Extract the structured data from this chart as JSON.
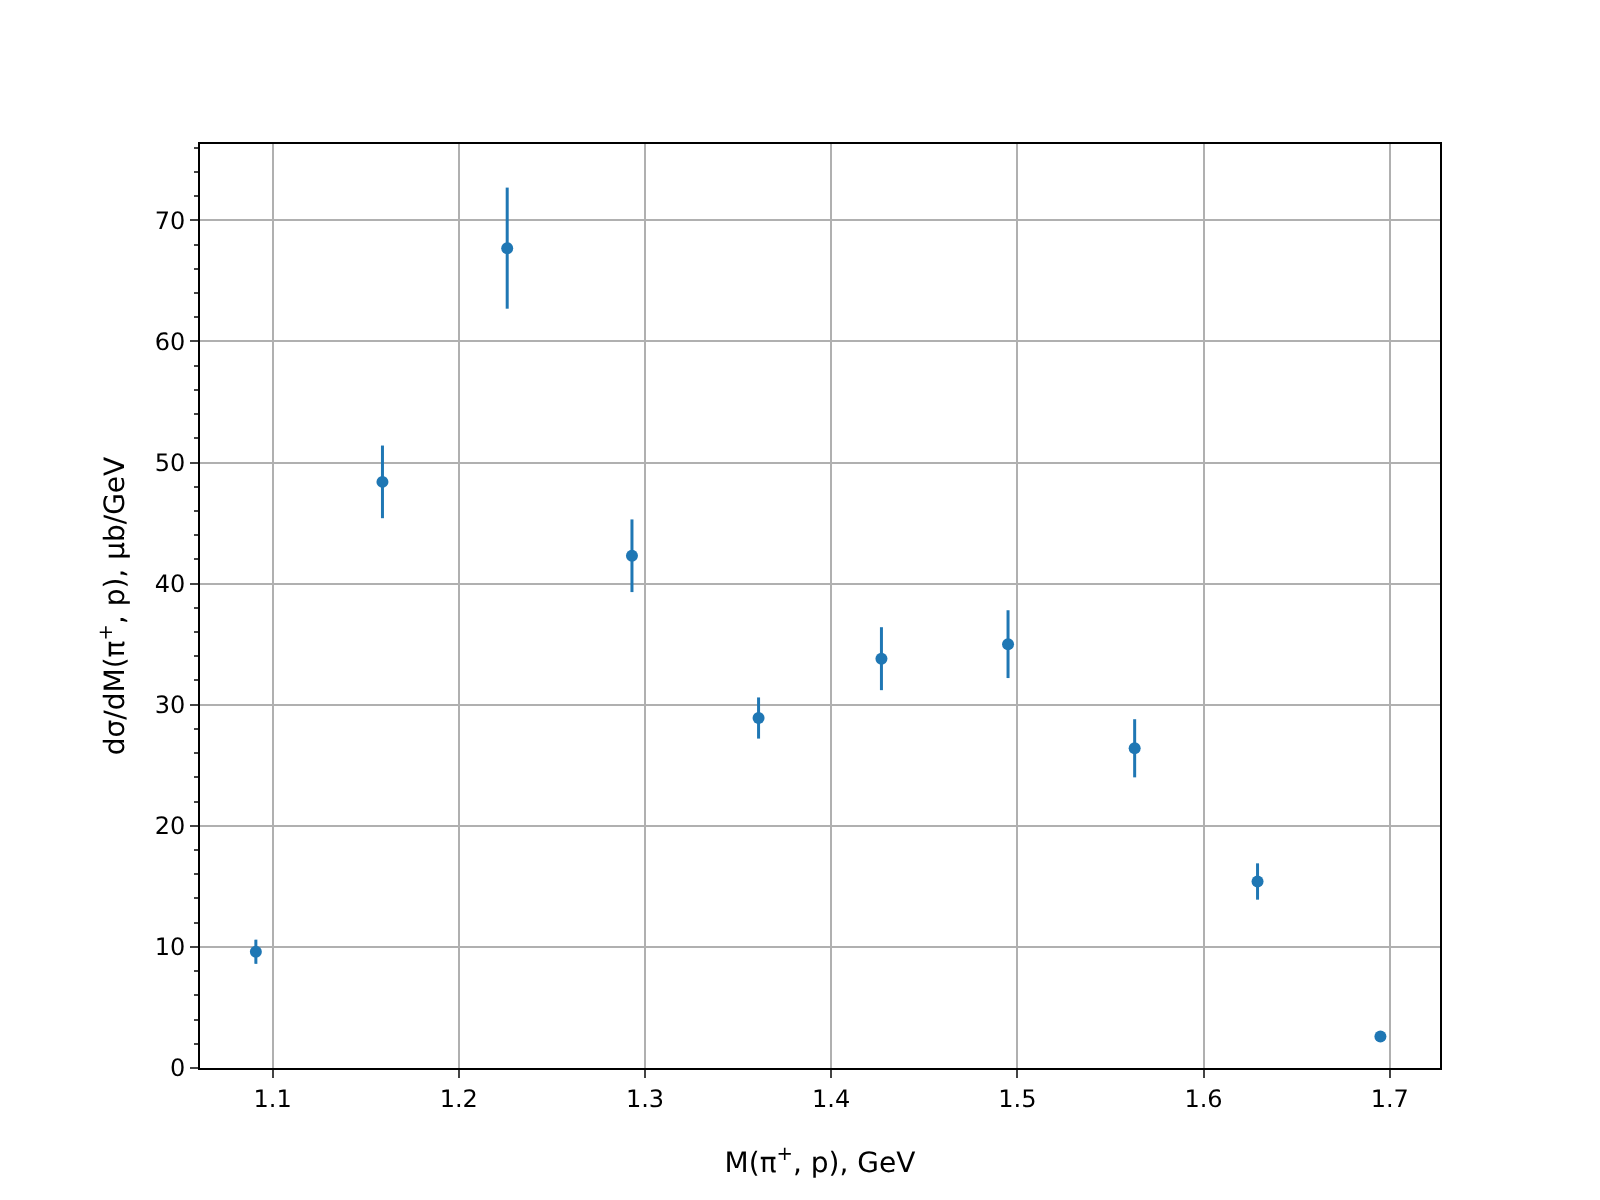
{
  "chart_data": {
    "type": "scatter",
    "xlabel": "M(π$^{+}$, p), GeV",
    "ylabel": "dσ/dM(π$^{+}$, p), μb/GeV",
    "x": [
      1.091,
      1.159,
      1.226,
      1.293,
      1.361,
      1.427,
      1.495,
      1.563,
      1.629,
      1.695
    ],
    "series": [
      {
        "color": "#1f77b4",
        "values": [
          9.6,
          48.4,
          67.7,
          42.3,
          28.9,
          33.8,
          35.0,
          26.4,
          15.4,
          2.6
        ],
        "errors": [
          1.0,
          3.0,
          5.0,
          3.0,
          1.7,
          2.6,
          2.8,
          2.4,
          1.5,
          0.3
        ]
      }
    ],
    "xlim": [
      1.061,
      1.727
    ],
    "ylim": [
      0,
      76.3
    ],
    "xticks": [
      1.1,
      1.2,
      1.3,
      1.4,
      1.5,
      1.6,
      1.7
    ],
    "yticks": [
      0,
      10,
      20,
      30,
      40,
      50,
      60,
      70
    ],
    "grid": true,
    "marker": "circle"
  }
}
